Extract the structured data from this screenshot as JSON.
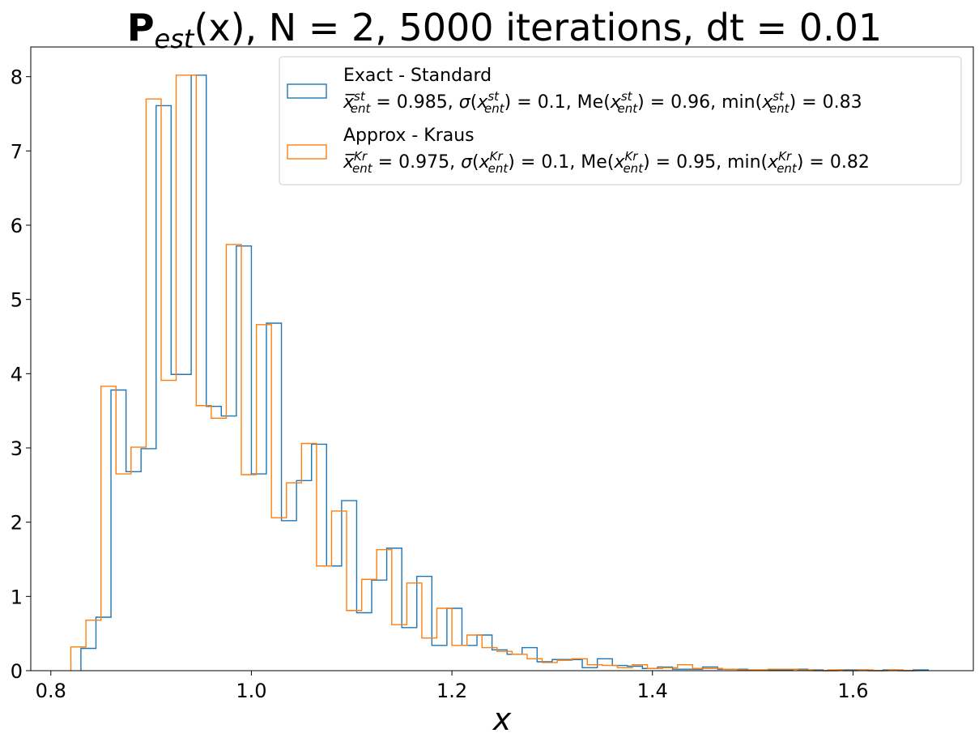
{
  "chart_data": {
    "type": "histogram-step",
    "title": {
      "bold": "P",
      "subscript": "est",
      "rest": "(x), N = 2, 5000 iterations, dt = 0.01"
    },
    "xlabel": "x",
    "ylabel": "",
    "xlim": [
      0.78,
      1.72
    ],
    "ylim": [
      0,
      8.4
    ],
    "xticks": [
      0.8,
      1.0,
      1.2,
      1.4,
      1.6
    ],
    "xtick_labels": [
      "0.8",
      "1.0",
      "1.2",
      "1.4",
      "1.6"
    ],
    "yticks": [
      0,
      1,
      2,
      3,
      4,
      5,
      6,
      7,
      8
    ],
    "ytick_labels": [
      "0",
      "1",
      "2",
      "3",
      "4",
      "5",
      "6",
      "7",
      "8"
    ],
    "grid": false,
    "legend_position": "top-right",
    "series": [
      {
        "name": "Exact - Standard",
        "stats_text": "x̄ent^st = 0.985, σ(x^st_ent) = 0.1, Me(x^st_ent) = 0.96, min(x^st_ent) = 0.83",
        "stats_parts": {
          "sup": "st",
          "mean": "0.985",
          "sigma": "0.1",
          "median": "0.96",
          "min": "0.83"
        },
        "color": "#1f77b4",
        "bin_edges": [
          0.83,
          0.845,
          0.86,
          0.875,
          0.89,
          0.905,
          0.92,
          0.94,
          0.955,
          0.97,
          0.985,
          1.0,
          1.015,
          1.03,
          1.045,
          1.06,
          1.075,
          1.09,
          1.105,
          1.12,
          1.135,
          1.15,
          1.165,
          1.18,
          1.195,
          1.21,
          1.225,
          1.24,
          1.255,
          1.27,
          1.285,
          1.3,
          1.315,
          1.33,
          1.345,
          1.36,
          1.375,
          1.39,
          1.405,
          1.42,
          1.435,
          1.45,
          1.465,
          1.48,
          1.495,
          1.51,
          1.525,
          1.54,
          1.555,
          1.57,
          1.585,
          1.6,
          1.615,
          1.63,
          1.645,
          1.66,
          1.675
        ],
        "counts": [
          0.3,
          0.72,
          3.78,
          2.68,
          2.99,
          7.61,
          3.99,
          8.02,
          3.56,
          3.43,
          5.72,
          2.65,
          4.68,
          2.02,
          2.56,
          3.05,
          1.41,
          2.29,
          0.78,
          1.22,
          1.65,
          0.58,
          1.27,
          0.34,
          0.84,
          0.34,
          0.48,
          0.28,
          0.22,
          0.31,
          0.12,
          0.15,
          0.15,
          0.04,
          0.16,
          0.07,
          0.06,
          0.03,
          0.05,
          0.02,
          0.02,
          0.05,
          0.02,
          0.02,
          0.01,
          0.01,
          0.01,
          0.02,
          0.01,
          0.0,
          0.01,
          0.01,
          0.0,
          0.01,
          0.0,
          0.01
        ]
      },
      {
        "name": "Approx - Kraus",
        "stats_text": "x̄ent^Kr = 0.975, σ(x^Kr_ent) = 0.1, Me(x^Kr_ent) = 0.95, min(x^Kr_ent) = 0.82",
        "stats_parts": {
          "sup": "Kr",
          "mean": "0.975",
          "sigma": "0.1",
          "median": "0.95",
          "min": "0.82"
        },
        "color": "#ff7f0e",
        "bin_edges": [
          0.82,
          0.835,
          0.85,
          0.865,
          0.88,
          0.895,
          0.91,
          0.925,
          0.945,
          0.96,
          0.975,
          0.99,
          1.005,
          1.02,
          1.035,
          1.05,
          1.065,
          1.08,
          1.095,
          1.11,
          1.125,
          1.14,
          1.155,
          1.17,
          1.185,
          1.2,
          1.215,
          1.23,
          1.245,
          1.26,
          1.275,
          1.29,
          1.305,
          1.32,
          1.335,
          1.35,
          1.365,
          1.38,
          1.395,
          1.41,
          1.425,
          1.44,
          1.455,
          1.47,
          1.485,
          1.5,
          1.515,
          1.53,
          1.545,
          1.56,
          1.575,
          1.59,
          1.605,
          1.62,
          1.635,
          1.65,
          1.665
        ],
        "counts": [
          0.32,
          0.68,
          3.83,
          2.65,
          3.01,
          7.7,
          3.91,
          8.02,
          3.57,
          3.4,
          5.74,
          2.64,
          4.66,
          2.06,
          2.53,
          3.06,
          1.41,
          2.15,
          0.81,
          1.23,
          1.63,
          0.62,
          1.18,
          0.44,
          0.84,
          0.34,
          0.48,
          0.31,
          0.26,
          0.22,
          0.16,
          0.11,
          0.14,
          0.16,
          0.08,
          0.07,
          0.04,
          0.08,
          0.03,
          0.04,
          0.08,
          0.03,
          0.03,
          0.02,
          0.01,
          0.01,
          0.02,
          0.02,
          0.01,
          0.0,
          0.01,
          0.0,
          0.01,
          0.0,
          0.01,
          0.0
        ]
      }
    ]
  }
}
